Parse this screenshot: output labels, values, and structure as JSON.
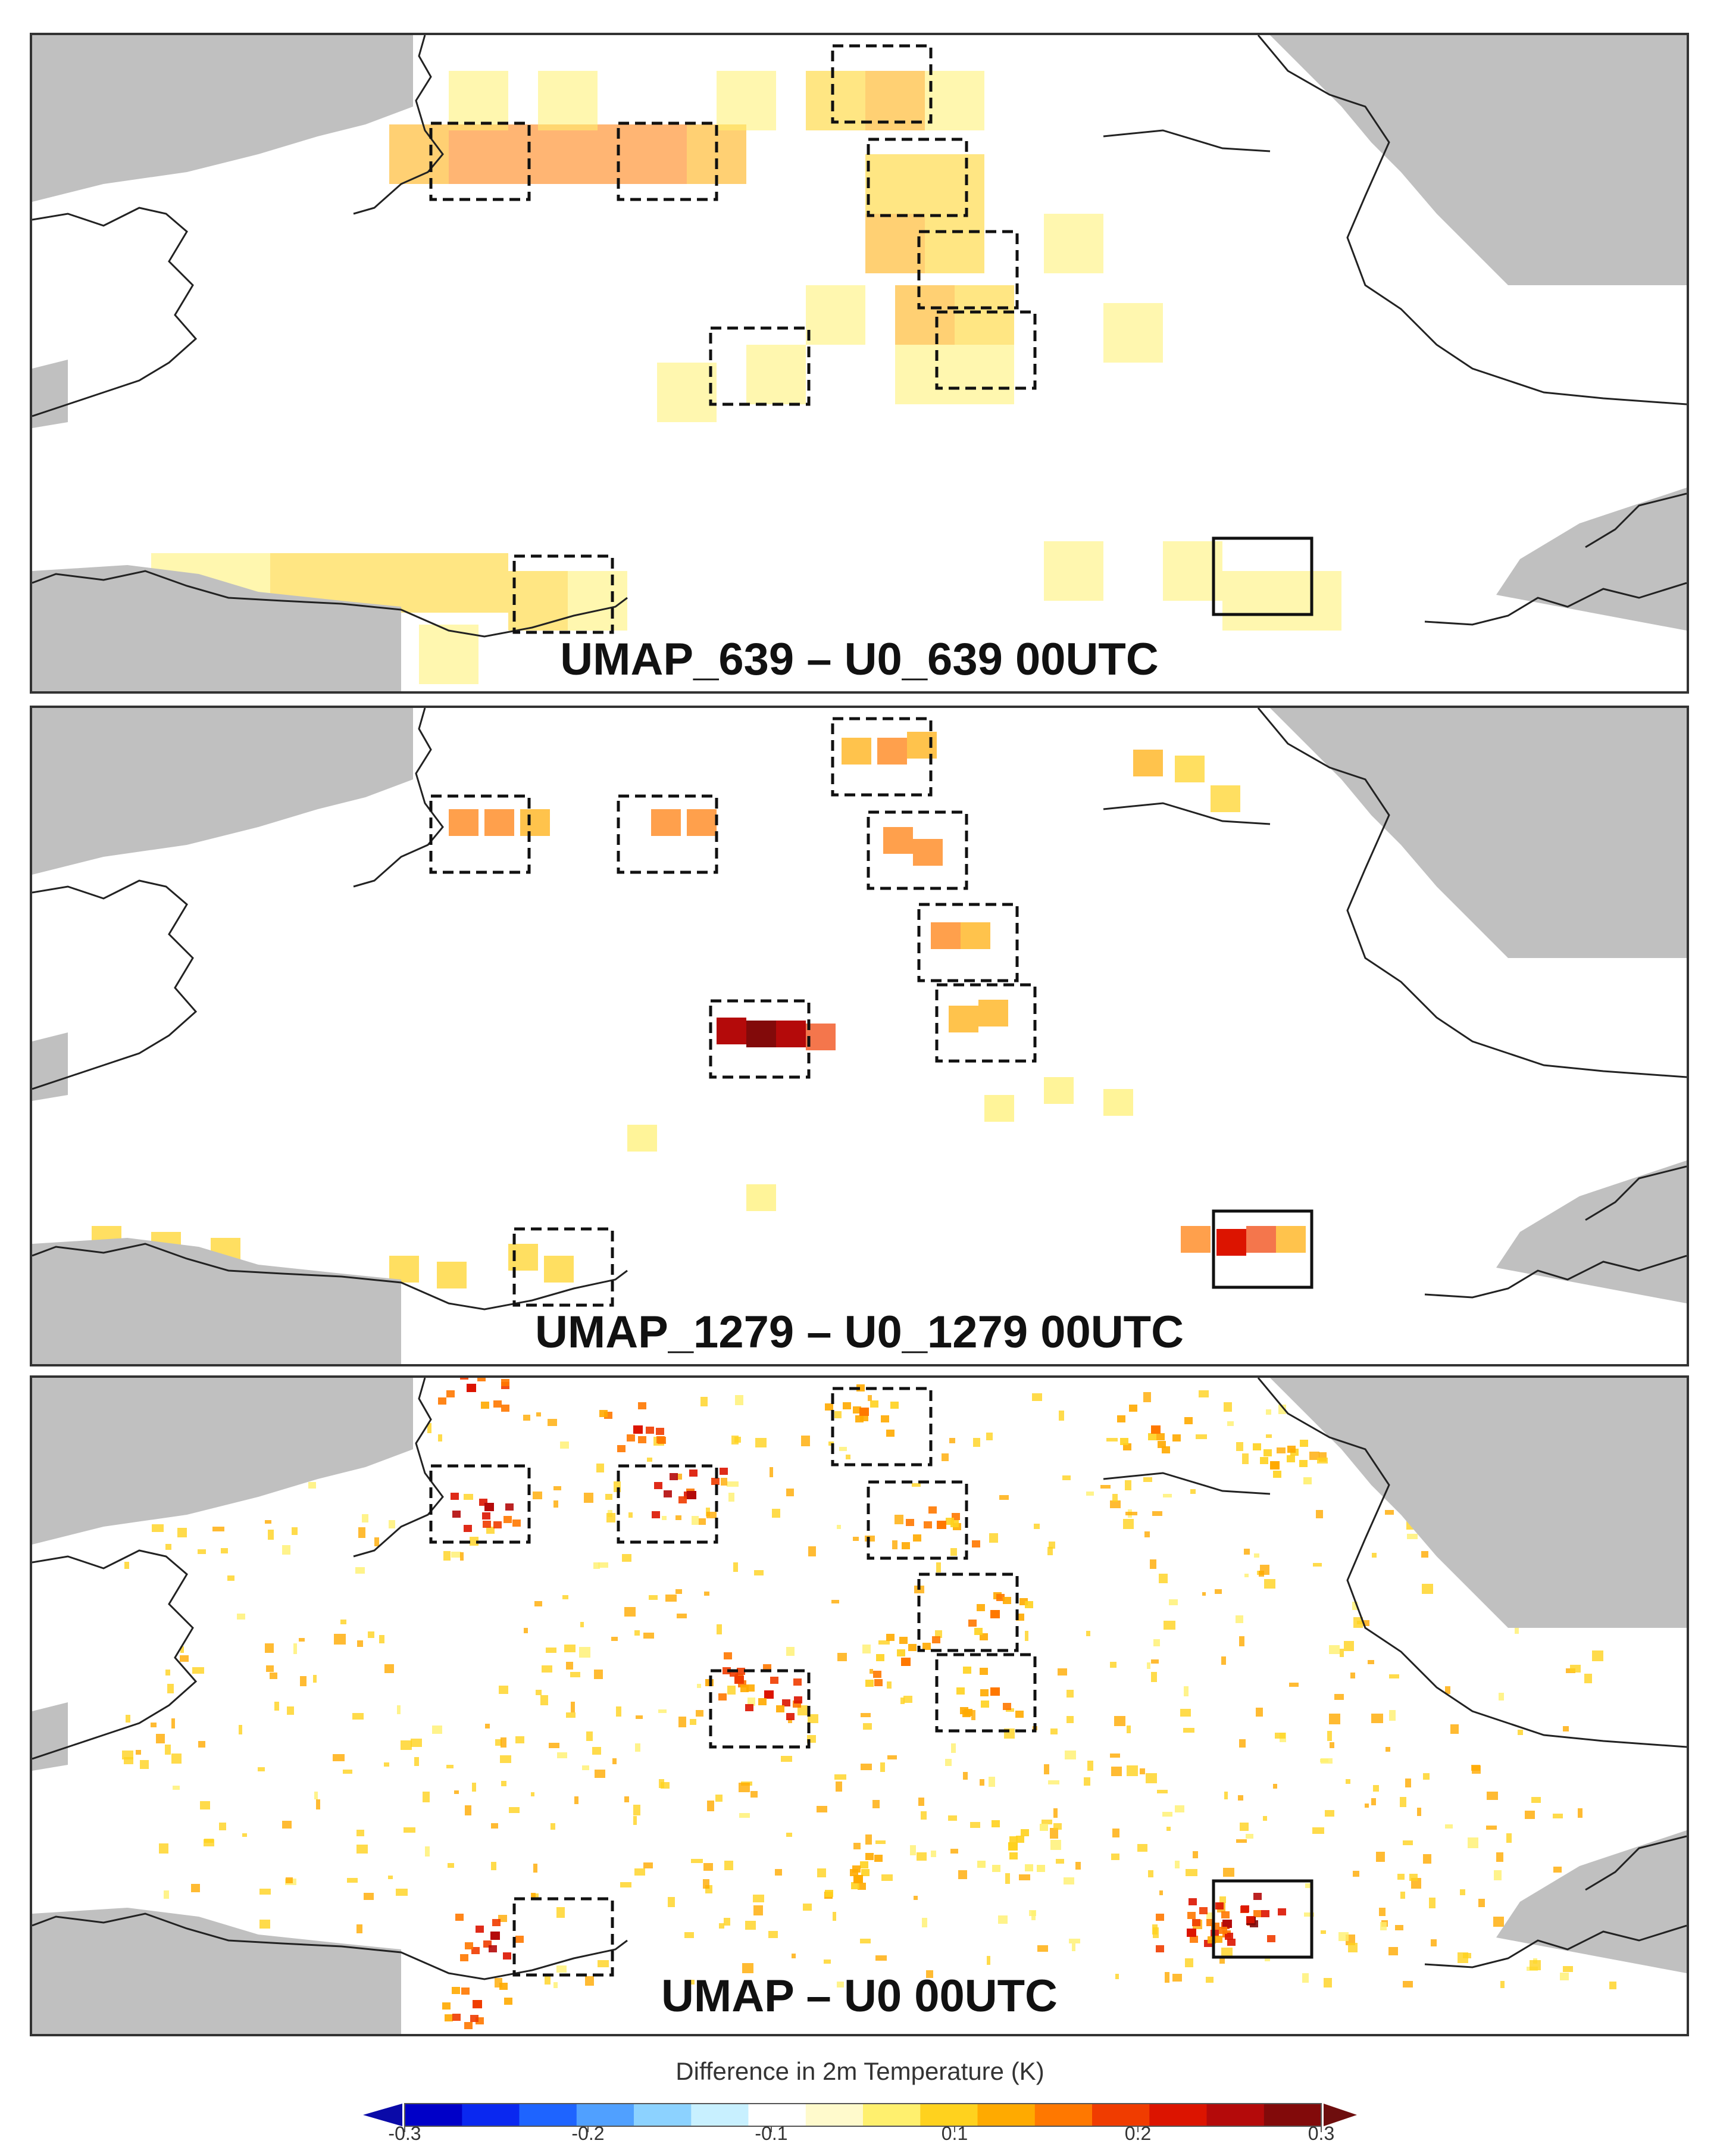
{
  "panels": [
    {
      "title": "UMAP_639 – U0_639 00UTC",
      "resolution": "coarse"
    },
    {
      "title": "UMAP_1279 – U0_1279 00UTC",
      "resolution": "medium"
    },
    {
      "title": "UMAP – U0 00UTC",
      "resolution": "fine"
    }
  ],
  "colorbar": {
    "label": "Difference in 2m Temperature (K)",
    "ticks": [
      "-0.3",
      "-0.2",
      "-0.1",
      "0.1",
      "0.2",
      "0.3"
    ],
    "min": -0.3,
    "max": 0.3,
    "low_extend_color": "#0a0aa8",
    "high_extend_color": "#6e0e0e",
    "colors": [
      "#0000c8",
      "#0a28f0",
      "#1e64ff",
      "#50a0ff",
      "#8cd2ff",
      "#c8f0ff",
      "#ffffff",
      "#fffacc",
      "#fff06e",
      "#ffd21e",
      "#ffaa00",
      "#ff7800",
      "#f03c00",
      "#dc1400",
      "#b40a0a",
      "#820a0a"
    ]
  },
  "map": {
    "land_color": "#ffffff",
    "sea_color": "#c0c0c0",
    "coast_color": "#222222"
  }
}
